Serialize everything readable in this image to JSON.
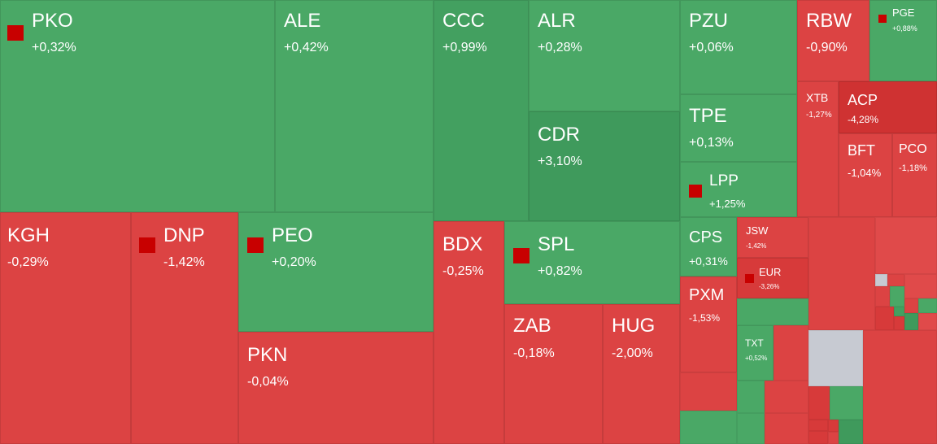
{
  "colors": {
    "up": "#4aa866",
    "down": "#dc4343",
    "neutral": "#c7cad2",
    "marker": "#c80000"
  },
  "tiles": {
    "pko": {
      "symbol": "PKO",
      "change": "+0,32%",
      "marked": true
    },
    "ale": {
      "symbol": "ALE",
      "change": "+0,42%"
    },
    "ccc": {
      "symbol": "CCC",
      "change": "+0,99%"
    },
    "alr": {
      "symbol": "ALR",
      "change": "+0,28%"
    },
    "cdr": {
      "symbol": "CDR",
      "change": "+3,10%"
    },
    "pzu": {
      "symbol": "PZU",
      "change": "+0,06%"
    },
    "tpe": {
      "symbol": "TPE",
      "change": "+0,13%"
    },
    "lpp": {
      "symbol": "LPP",
      "change": "+1,25%",
      "marked": true
    },
    "rbw": {
      "symbol": "RBW",
      "change": "-0,90%"
    },
    "pge": {
      "symbol": "PGE",
      "change": "+0,88%",
      "marked": true
    },
    "xtb": {
      "symbol": "XTB",
      "change": "-1,27%"
    },
    "acp": {
      "symbol": "ACP",
      "change": "-4,28%"
    },
    "bft": {
      "symbol": "BFT",
      "change": "-1,04%"
    },
    "pco": {
      "symbol": "PCO",
      "change": "-1,18%"
    },
    "kgh": {
      "symbol": "KGH",
      "change": "-0,29%"
    },
    "dnp": {
      "symbol": "DNP",
      "change": "-1,42%",
      "marked": true
    },
    "peo": {
      "symbol": "PEO",
      "change": "+0,20%",
      "marked": true
    },
    "pkn": {
      "symbol": "PKN",
      "change": "-0,04%"
    },
    "bdx": {
      "symbol": "BDX",
      "change": "-0,25%"
    },
    "spl": {
      "symbol": "SPL",
      "change": "+0,82%",
      "marked": true
    },
    "zab": {
      "symbol": "ZAB",
      "change": "-0,18%"
    },
    "hug": {
      "symbol": "HUG",
      "change": "-2,00%"
    },
    "cps": {
      "symbol": "CPS",
      "change": "+0,31%"
    },
    "pxm": {
      "symbol": "PXM",
      "change": "-1,53%"
    },
    "jsw": {
      "symbol": "JSW",
      "change": "-1,42%"
    },
    "eur": {
      "symbol": "EUR",
      "change": "-3,26%",
      "marked": true
    },
    "txt": {
      "symbol": "TXT",
      "change": "+0,52%"
    }
  }
}
